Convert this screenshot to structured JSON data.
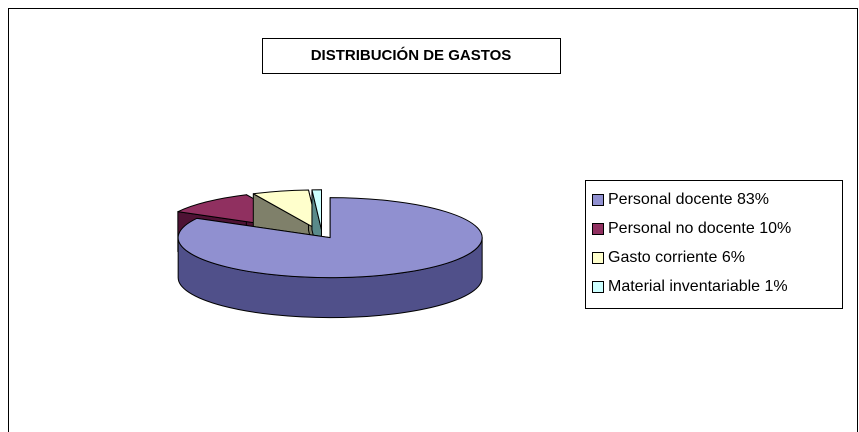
{
  "chart_data": {
    "type": "pie",
    "title": "DISTRIBUCIÓN DE GASTOS",
    "categories": [
      "Personal docente 83%",
      "Personal no docente 10%",
      "Gasto corriente 6%",
      "Material inventariable 1%"
    ],
    "values": [
      83,
      10,
      6,
      1
    ],
    "colors": [
      "#9090d0",
      "#903060",
      "#ffffcc",
      "#ccffff"
    ],
    "side_colors": [
      "#50508a",
      "#4e1234",
      "#7f806a",
      "#5a8a8a"
    ],
    "legend": "right"
  }
}
